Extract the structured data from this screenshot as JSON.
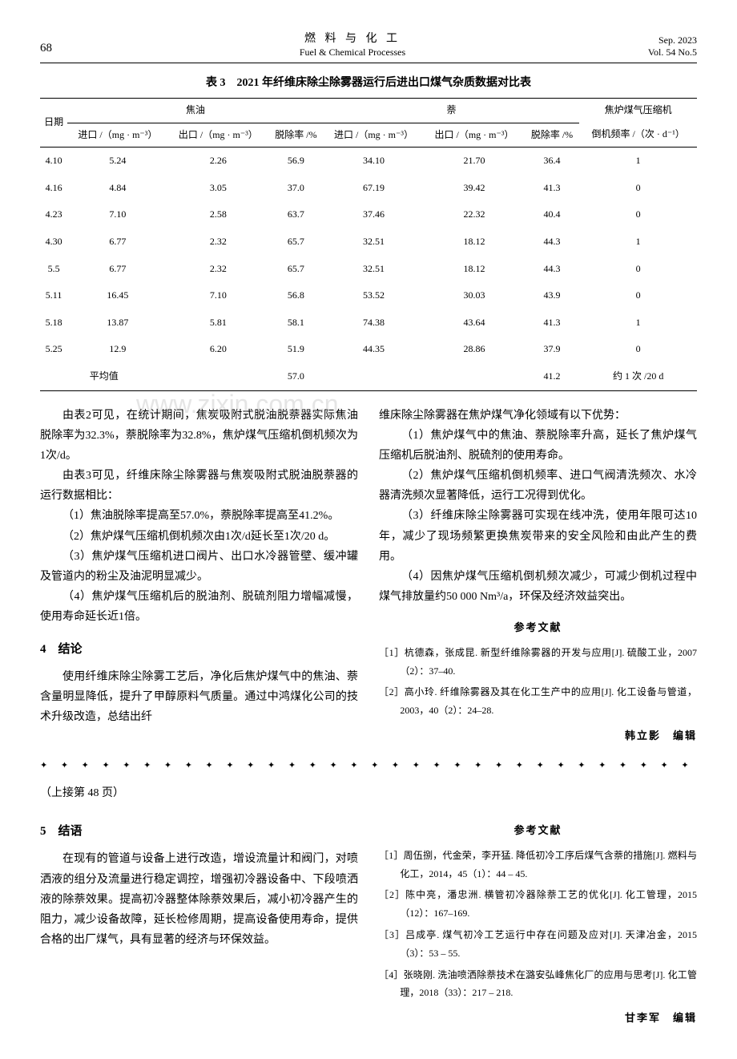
{
  "header": {
    "page_num": "68",
    "journal_cn": "燃 料 与 化 工",
    "journal_en": "Fuel & Chemical Processes",
    "date": "Sep. 2023",
    "vol": "Vol. 54 No.5"
  },
  "table": {
    "title": "表 3　2021 年纤维床除尘除雾器运行后进出口煤气杂质数据对比表",
    "group_headers": [
      "日期",
      "焦油",
      "萘",
      "焦炉煤气压缩机"
    ],
    "sub_headers": {
      "date": "日期",
      "inlet": "进口 /（mg · m⁻³）",
      "outlet": "出口 /（mg · m⁻³）",
      "rate": "脱除率 /%",
      "comp": "倒机频率 /（次 · d⁻¹）"
    },
    "rows": [
      [
        "4.10",
        "5.24",
        "2.26",
        "56.9",
        "34.10",
        "21.70",
        "36.4",
        "1"
      ],
      [
        "4.16",
        "4.84",
        "3.05",
        "37.0",
        "67.19",
        "39.42",
        "41.3",
        "0"
      ],
      [
        "4.23",
        "7.10",
        "2.58",
        "63.7",
        "37.46",
        "22.32",
        "40.4",
        "0"
      ],
      [
        "4.30",
        "6.77",
        "2.32",
        "65.7",
        "32.51",
        "18.12",
        "44.3",
        "1"
      ],
      [
        "5.5",
        "6.77",
        "2.32",
        "65.7",
        "32.51",
        "18.12",
        "44.3",
        "0"
      ],
      [
        "5.11",
        "16.45",
        "7.10",
        "56.8",
        "53.52",
        "30.03",
        "43.9",
        "0"
      ],
      [
        "5.18",
        "13.87",
        "5.81",
        "58.1",
        "74.38",
        "43.64",
        "41.3",
        "1"
      ],
      [
        "5.25",
        "12.9",
        "6.20",
        "51.9",
        "44.35",
        "28.86",
        "37.9",
        "0"
      ]
    ],
    "avg_row": [
      "平均值",
      "",
      "",
      "57.0",
      "",
      "",
      "41.2",
      "约 1 次 /20 d"
    ]
  },
  "left_col": {
    "p1": "由表2可见，在统计期间，焦炭吸附式脱油脱萘器实际焦油脱除率为32.3%，萘脱除率为32.8%，焦炉煤气压缩机倒机频次为1次/d。",
    "p2": "由表3可见，纤维床除尘除雾器与焦炭吸附式脱油脱萘器的运行数据相比：",
    "p3": "（1）焦油脱除率提高至57.0%，萘脱除率提高至41.2%。",
    "p4": "（2）焦炉煤气压缩机倒机频次由1次/d延长至1次/20 d。",
    "p5": "（3）焦炉煤气压缩机进口阀片、出口水冷器管壁、缓冲罐及管道内的粉尘及油泥明显减少。",
    "p6": "（4）焦炉煤气压缩机后的脱油剂、脱硫剂阻力增幅减慢，使用寿命延长近1倍。",
    "sec4": "4　结论",
    "p7": "使用纤维床除尘除雾工艺后，净化后焦炉煤气中的焦油、萘含量明显降低，提升了甲醇原料气质量。通过中鸿煤化公司的技术升级改造，总结出纤"
  },
  "right_col": {
    "p1": "维床除尘除雾器在焦炉煤气净化领域有以下优势：",
    "p2": "（1）焦炉煤气中的焦油、萘脱除率升高，延长了焦炉煤气压缩机后脱油剂、脱硫剂的使用寿命。",
    "p3": "（2）焦炉煤气压缩机倒机频率、进口气阀清洗频次、水冷器清洗频次显著降低，运行工况得到优化。",
    "p4": "（3）纤维床除尘除雾器可实现在线冲洗，使用年限可达10年，减少了现场频繁更换焦炭带来的安全风险和由此产生的费用。",
    "p5": "（4）因焦炉煤气压缩机倒机频次减少，可减少倒机过程中煤气排放量约50 000 Nm³/a，环保及经济效益突出。",
    "refs_title": "参考文献",
    "ref1": "［1］杭德森，张成昆. 新型纤维除雾器的开发与应用[J]. 硫酸工业，2007（2）：37–40.",
    "ref2": "［2］高小玲. 纤维除雾器及其在化工生产中的应用[J]. 化工设备与管道，2003，40（2）：24–28.",
    "editor": "韩立影　编辑"
  },
  "continuation": {
    "note": "（上接第 48 页）",
    "sec5": "5　结语",
    "left_p": "在现有的管道与设备上进行改造，增设流量计和阀门，对喷洒液的组分及流量进行稳定调控，增强初冷器设备中、下段喷洒液的除萘效果。提高初冷器整体除萘效果后，减小初冷器产生的阻力，减少设备故障，延长检修周期，提高设备使用寿命，提供合格的出厂煤气，具有显著的经济与环保效益。",
    "refs_title": "参考文献",
    "ref1": "［1］周伍捌，代金荣，李开猛. 降低初冷工序后煤气含萘的措施[J]. 燃料与化工，2014，45（1）：44 – 45.",
    "ref2": "［2］陈中亮，潘忠洲. 横管初冷器除萘工艺的优化[J]. 化工管理，2015（12）：167–169.",
    "ref3": "［3］吕成亭. 煤气初冷工艺运行中存在问题及应对[J]. 天津冶金，2015（3）：53 – 55.",
    "ref4": "［4］张晓刚. 洗油喷洒除萘技术在潞安弘峰焦化厂的应用与思考[J]. 化工管理，2018（33）：217 – 218.",
    "editor": "甘李军　编辑"
  },
  "watermark": "www.zixin.com.cn",
  "colors": {
    "text": "#000000",
    "background": "#ffffff",
    "watermark": "rgba(180,180,180,0.35)",
    "rule": "#000000"
  }
}
